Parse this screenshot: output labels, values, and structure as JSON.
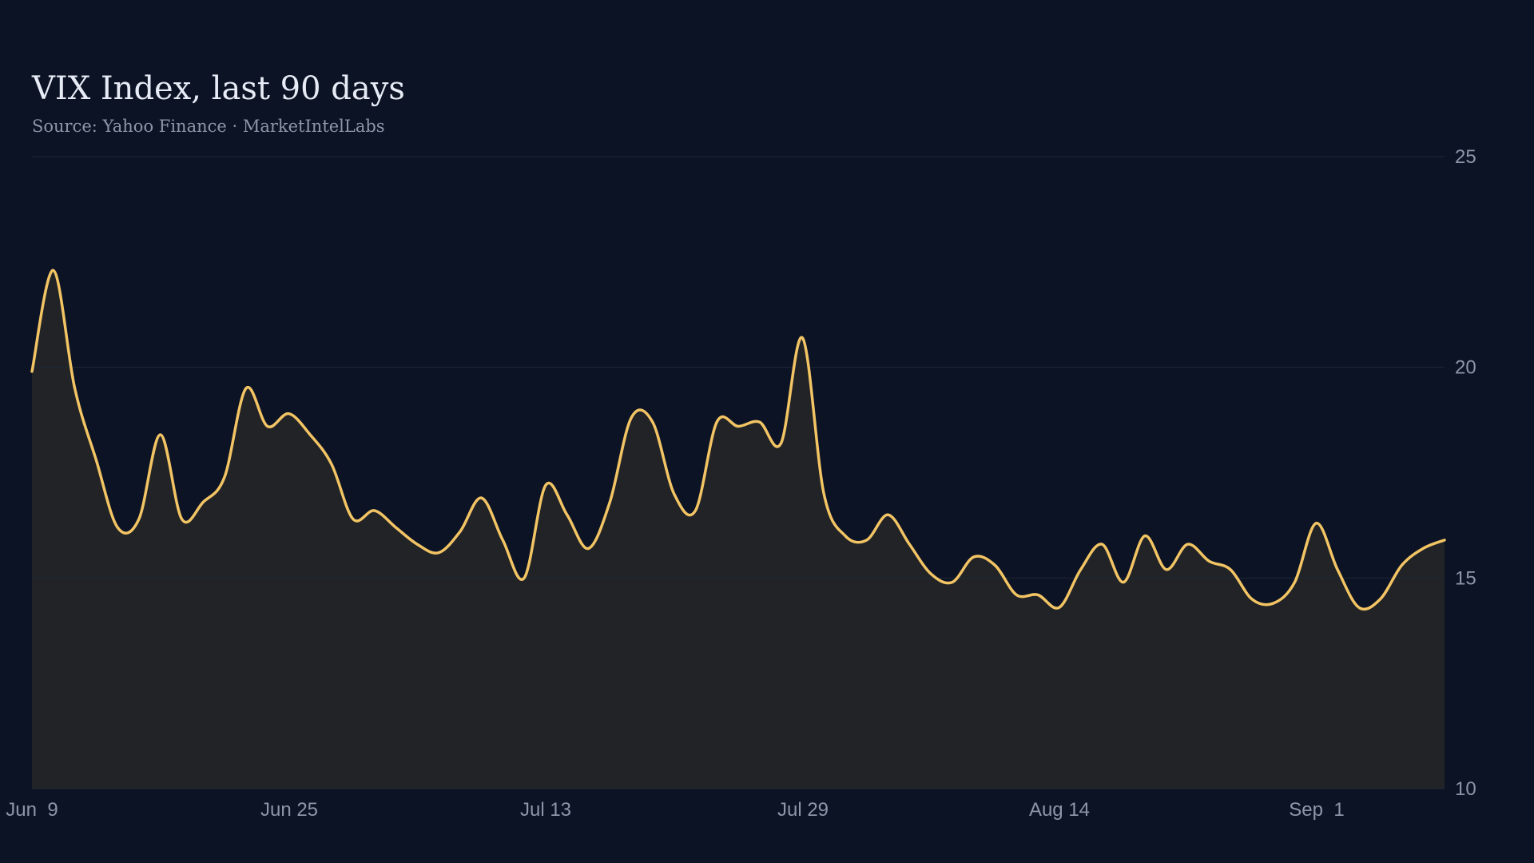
{
  "chart_data": {
    "type": "area",
    "title": "VIX Index, last 90 days",
    "subtitle": "Source: Yahoo Finance · MarketIntelLabs",
    "xlabel": "",
    "ylabel": "",
    "x_tick_labels": [
      "Jun  9",
      "Jun 25",
      "Jul 13",
      "Jul 29",
      "Aug 14",
      "Sep  1"
    ],
    "y_ticks": [
      10,
      15,
      20,
      25
    ],
    "ylim": [
      10,
      25
    ],
    "grid": true,
    "x_axis": "bottom",
    "y_axis": "right",
    "series": [
      {
        "values": [
          19.9,
          22.3,
          19.5,
          17.8,
          16.2,
          16.4,
          18.4,
          16.4,
          16.8,
          17.4,
          19.5,
          18.6,
          18.9,
          18.4,
          17.7,
          16.4,
          16.6,
          16.2,
          15.8,
          15.6,
          16.1,
          16.9,
          15.9,
          15.0,
          17.2,
          16.5,
          15.7,
          16.8,
          18.8,
          18.7,
          17.0,
          16.6,
          18.7,
          18.6,
          18.7,
          18.2,
          20.7,
          17.0,
          16.0,
          15.9,
          16.5,
          15.8,
          15.1,
          14.9,
          15.5,
          15.3,
          14.6,
          14.6,
          14.3,
          15.2,
          15.8,
          14.9,
          16.0,
          15.2,
          15.8,
          15.4,
          15.2,
          14.5,
          14.4,
          14.9,
          16.3,
          15.2,
          14.3,
          14.5,
          15.3,
          15.7,
          15.9
        ],
        "color": "#f2c464"
      }
    ],
    "colors": {
      "background": "#0c1325",
      "line": "#f2c464",
      "area_fill": "#212327",
      "grid": "#1f2a36",
      "tick_text": "#8d96a8",
      "title_text": "#e6ebf5"
    }
  }
}
